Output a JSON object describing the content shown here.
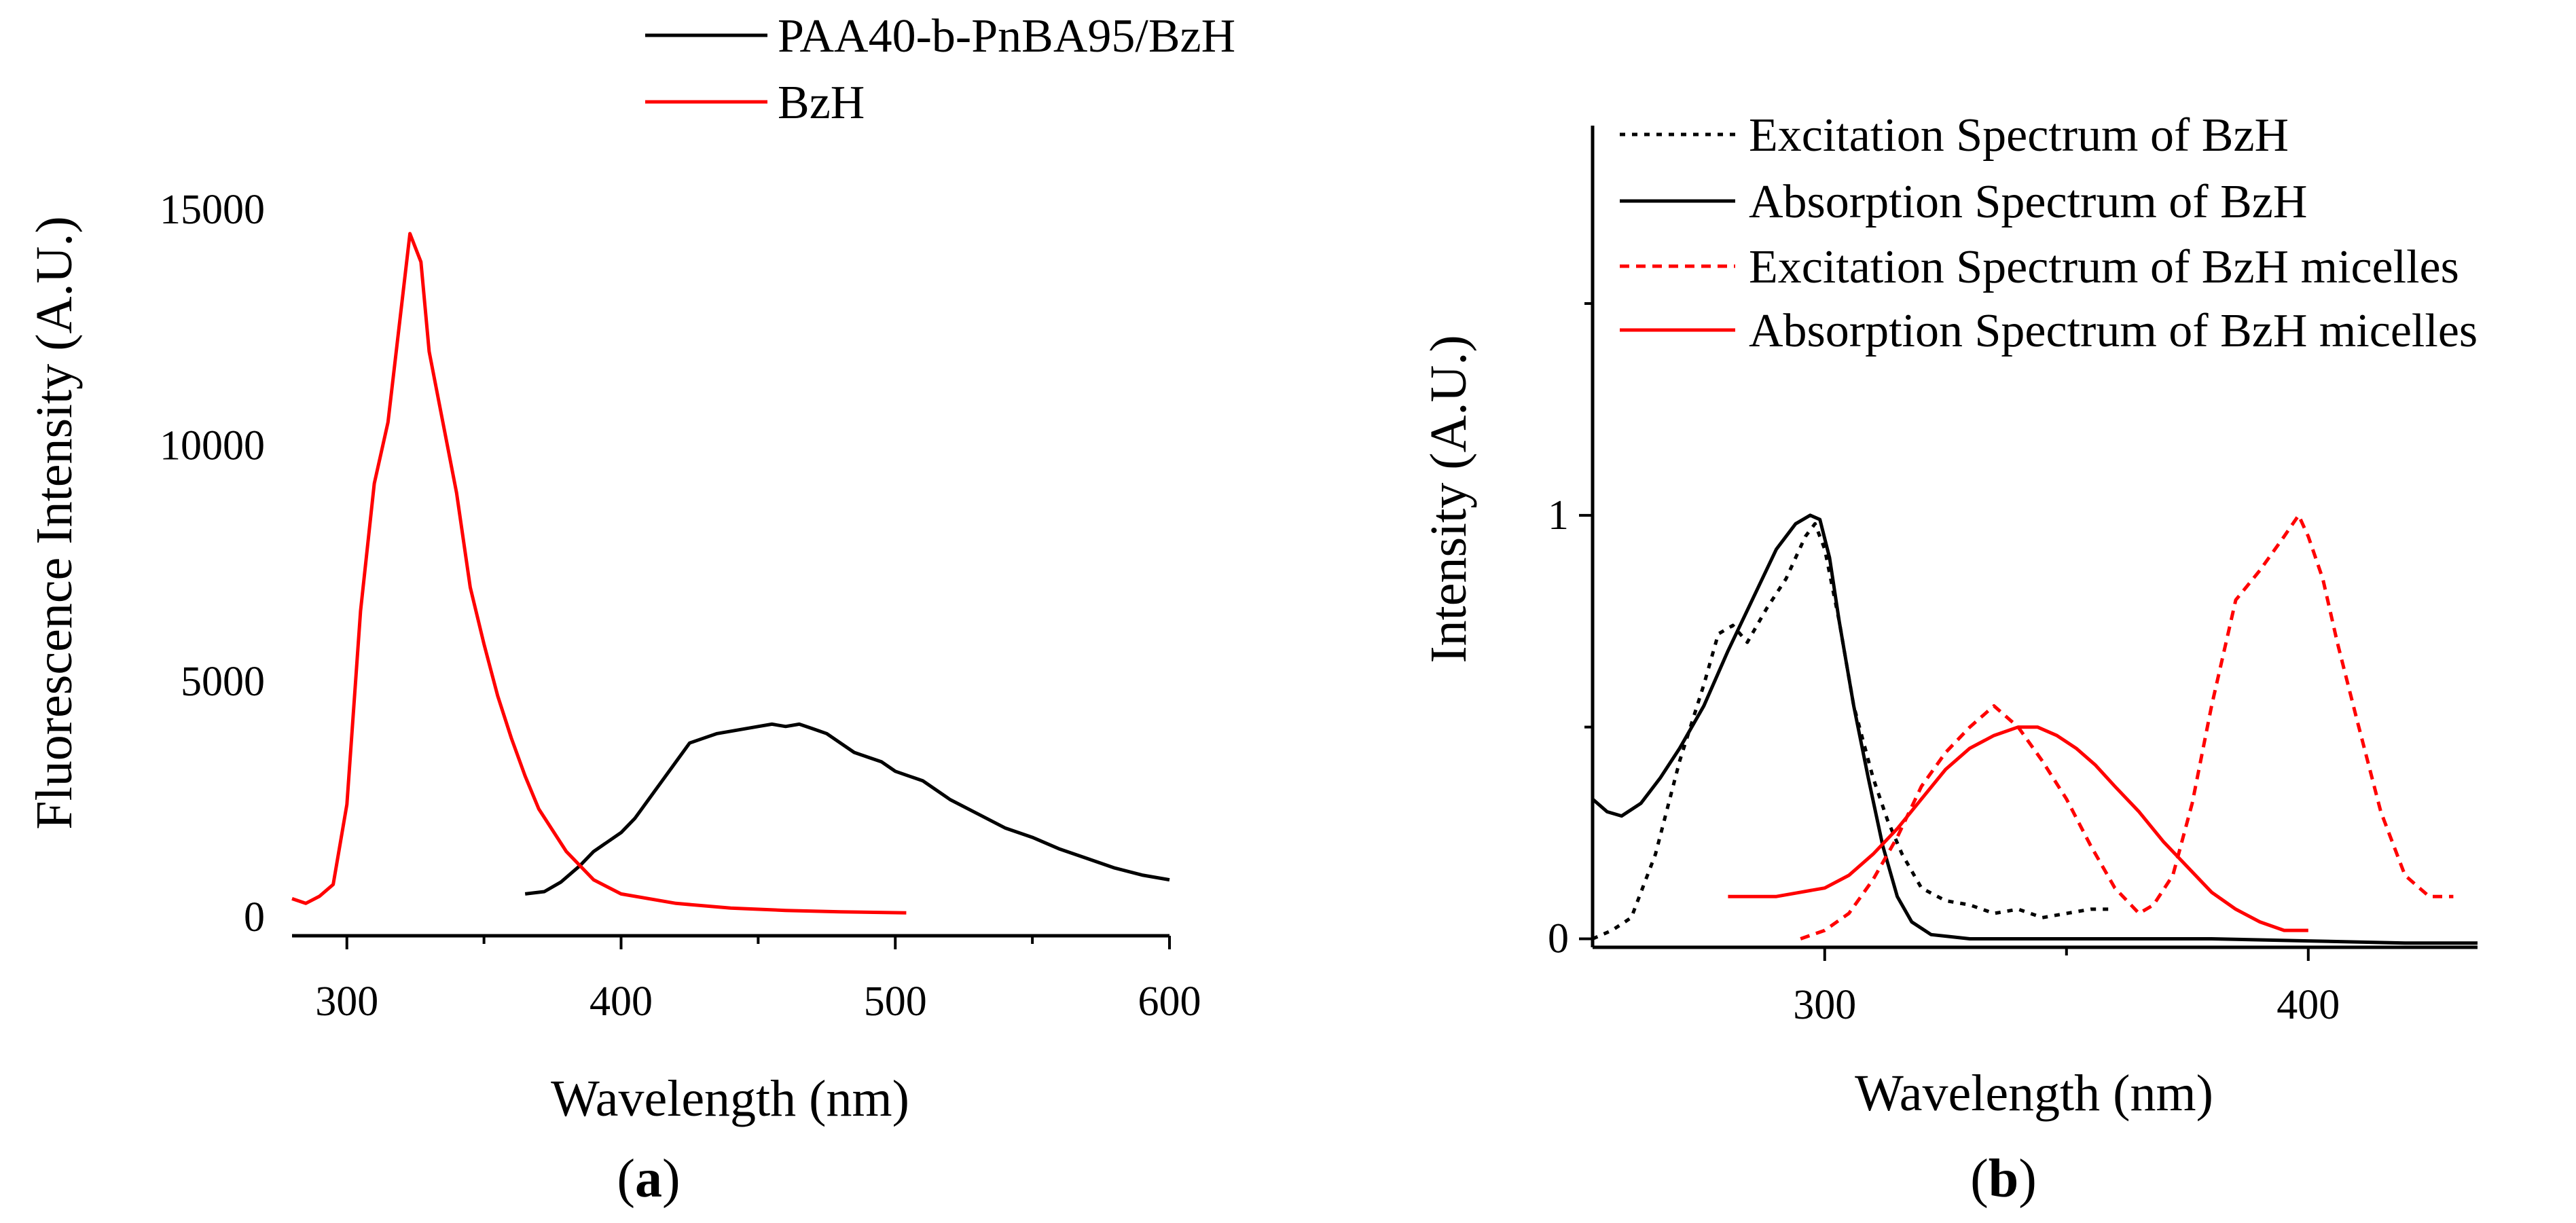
{
  "colors": {
    "black": "#000000",
    "red": "#ff0000"
  },
  "chart_data": [
    {
      "panel": "(a)",
      "panel_letter": "a",
      "type": "line",
      "xlabel": "Wavelength (nm)",
      "ylabel": "Fluorescence Intensity (A.U.)",
      "xlim": [
        280,
        600
      ],
      "ylim": [
        -300,
        16400
      ],
      "xticks": [
        300,
        400,
        500,
        600
      ],
      "yticks": [
        0,
        5000,
        10000,
        15000
      ],
      "legend_position": "top",
      "series": [
        {
          "name": "PAA40-b-PnBA95/BzH",
          "color": "#000000",
          "style": "solid",
          "x": [
            365,
            372,
            378,
            385,
            390,
            395,
            400,
            405,
            410,
            415,
            420,
            425,
            430,
            435,
            440,
            445,
            450,
            455,
            460,
            465,
            470,
            475,
            480,
            485,
            490,
            495,
            500,
            505,
            510,
            515,
            520,
            530,
            540,
            550,
            560,
            570,
            580,
            590,
            600
          ],
          "y": [
            500,
            550,
            750,
            1100,
            1400,
            1600,
            1800,
            2100,
            2500,
            2900,
            3300,
            3700,
            3800,
            3900,
            3950,
            4000,
            4050,
            4100,
            4050,
            4100,
            4000,
            3900,
            3700,
            3500,
            3400,
            3300,
            3100,
            3000,
            2900,
            2700,
            2500,
            2200,
            1900,
            1700,
            1450,
            1250,
            1050,
            900,
            800
          ]
        },
        {
          "name": "BzH",
          "color": "#ff0000",
          "style": "solid",
          "x": [
            280,
            285,
            290,
            295,
            300,
            305,
            310,
            315,
            320,
            323,
            327,
            330,
            335,
            340,
            345,
            350,
            355,
            360,
            365,
            370,
            380,
            390,
            400,
            420,
            440,
            460,
            480,
            504
          ],
          "y": [
            400,
            300,
            450,
            700,
            2400,
            6500,
            9200,
            10500,
            13000,
            14500,
            13900,
            12000,
            10500,
            9000,
            7000,
            5800,
            4700,
            3800,
            3000,
            2300,
            1400,
            800,
            500,
            300,
            200,
            150,
            120,
            100
          ]
        }
      ]
    },
    {
      "panel": "(b)",
      "panel_letter": "b",
      "type": "line",
      "xlabel": "Wavelength (nm)",
      "ylabel": "Intensity (A.U.)",
      "xlim": [
        252,
        435
      ],
      "ylim": [
        -0.02,
        1.92
      ],
      "xticks": [
        300,
        400
      ],
      "yticks": [
        0,
        1
      ],
      "legend_position": "top-left",
      "series": [
        {
          "name": "Excitation Spectrum of BzH",
          "color": "#000000",
          "style": "dotted",
          "x": [
            252,
            256,
            260,
            265,
            270,
            275,
            278,
            281,
            284,
            288,
            292,
            294,
            296,
            298,
            300,
            303,
            306,
            310,
            313,
            316,
            320,
            325,
            330,
            335,
            340,
            345,
            350,
            355,
            360
          ],
          "y": [
            0.0,
            0.02,
            0.05,
            0.2,
            0.42,
            0.6,
            0.72,
            0.74,
            0.7,
            0.78,
            0.85,
            0.9,
            0.95,
            0.98,
            0.92,
            0.75,
            0.55,
            0.38,
            0.28,
            0.2,
            0.12,
            0.09,
            0.08,
            0.06,
            0.07,
            0.05,
            0.06,
            0.07,
            0.07
          ]
        },
        {
          "name": "Absorption Spectrum of BzH",
          "color": "#000000",
          "style": "solid",
          "x": [
            252,
            255,
            258,
            262,
            266,
            270,
            275,
            280,
            285,
            290,
            294,
            297,
            299,
            301,
            303,
            306,
            309,
            312,
            315,
            318,
            322,
            326,
            330,
            340,
            360,
            380,
            400,
            420,
            435
          ],
          "y": [
            0.33,
            0.3,
            0.29,
            0.32,
            0.38,
            0.45,
            0.55,
            0.68,
            0.8,
            0.92,
            0.98,
            1.0,
            0.99,
            0.9,
            0.75,
            0.55,
            0.38,
            0.22,
            0.1,
            0.04,
            0.01,
            0.005,
            0.0,
            0.0,
            0.0,
            0.0,
            -0.005,
            -0.01,
            -0.01
          ]
        },
        {
          "name": "Excitation Spectrum of BzH micelles",
          "color": "#ff0000",
          "style": "dashed",
          "x": [
            295,
            300,
            305,
            310,
            315,
            320,
            325,
            330,
            335,
            340,
            345,
            350,
            355,
            360,
            365,
            368,
            372,
            376,
            380,
            385,
            390,
            395,
            398,
            400,
            403,
            406,
            410,
            415,
            420,
            425,
            430
          ],
          "y": [
            0.0,
            0.02,
            0.06,
            0.14,
            0.24,
            0.36,
            0.44,
            0.5,
            0.55,
            0.5,
            0.42,
            0.33,
            0.22,
            0.12,
            0.06,
            0.08,
            0.15,
            0.32,
            0.55,
            0.8,
            0.87,
            0.95,
            1.0,
            0.95,
            0.85,
            0.7,
            0.52,
            0.3,
            0.15,
            0.1,
            0.1
          ]
        },
        {
          "name": "Absorption Spectrum of BzH micelles",
          "color": "#ff0000",
          "style": "solid",
          "x": [
            280,
            285,
            290,
            295,
            300,
            305,
            310,
            315,
            320,
            325,
            330,
            335,
            340,
            344,
            348,
            352,
            356,
            360,
            365,
            370,
            375,
            380,
            385,
            390,
            395,
            400
          ],
          "y": [
            0.1,
            0.1,
            0.1,
            0.11,
            0.12,
            0.15,
            0.2,
            0.26,
            0.33,
            0.4,
            0.45,
            0.48,
            0.5,
            0.5,
            0.48,
            0.45,
            0.41,
            0.36,
            0.3,
            0.23,
            0.17,
            0.11,
            0.07,
            0.04,
            0.02,
            0.02
          ]
        }
      ]
    }
  ]
}
